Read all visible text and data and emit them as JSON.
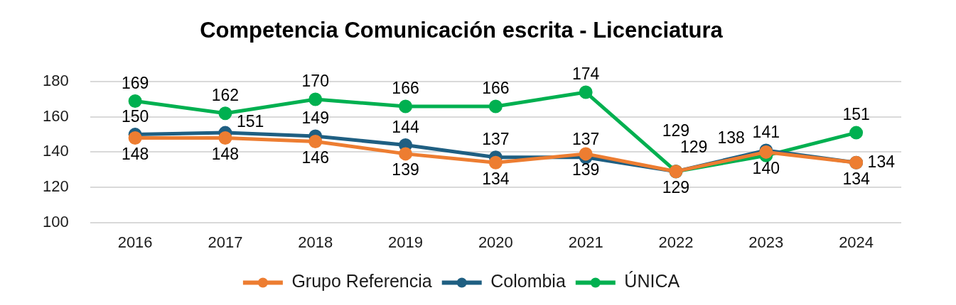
{
  "chart_data": {
    "type": "line",
    "title": "Competencia Comunicación escrita - Licenciatura",
    "categories": [
      "2016",
      "2017",
      "2018",
      "2019",
      "2020",
      "2021",
      "2022",
      "2023",
      "2024"
    ],
    "series": [
      {
        "name": "Grupo Referencia",
        "color": "#ed7d31",
        "values": [
          148,
          148,
          146,
          139,
          134,
          139,
          129,
          140,
          134
        ]
      },
      {
        "name": "Colombia",
        "color": "#1f5f82",
        "values": [
          150,
          151,
          149,
          144,
          137,
          137,
          129,
          141,
          134
        ]
      },
      {
        "name": "ÚNICA",
        "color": "#00b050",
        "values": [
          169,
          162,
          170,
          166,
          166,
          174,
          129,
          138,
          151
        ]
      }
    ],
    "ylim": [
      100,
      180
    ],
    "yticks": [
      100,
      120,
      140,
      160,
      180
    ],
    "grid": "y",
    "legend": "bottom",
    "marker": "circle",
    "line_style": "solid",
    "data_labels": true
  }
}
